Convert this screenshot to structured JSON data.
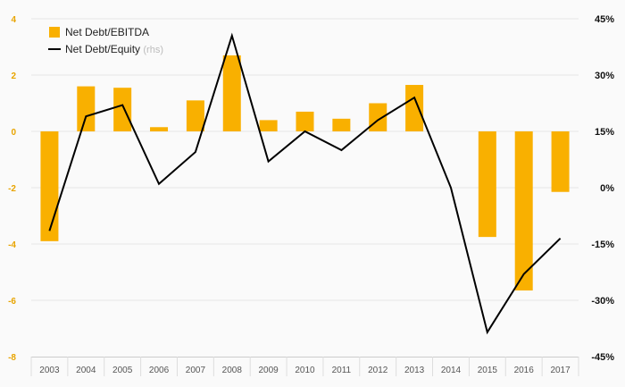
{
  "colors": {
    "bar": "#f9b000",
    "line": "#000000",
    "left_tick": "#e8a400",
    "grid": "#e6e6e6",
    "axis": "#cccccc"
  },
  "legend": {
    "bar_label": "Net Debt/EBITDA",
    "line_label": "Net Debt/Equity",
    "line_suffix": "(rhs)"
  },
  "chart_data": {
    "type": "bar",
    "categories": [
      "2003",
      "2004",
      "2005",
      "2006",
      "2007",
      "2008",
      "2009",
      "2010",
      "2011",
      "2012",
      "2013",
      "2014",
      "2015",
      "2016",
      "2017"
    ],
    "series": [
      {
        "name": "Net Debt/EBITDA",
        "type": "bar",
        "axis": "left",
        "values": [
          -3.9,
          1.6,
          1.55,
          0.15,
          1.1,
          2.7,
          0.4,
          0.7,
          0.45,
          1.0,
          1.65,
          0,
          -3.75,
          -5.65,
          -2.15
        ]
      },
      {
        "name": "Net Debt/Equity",
        "type": "line",
        "axis": "right",
        "values": [
          -11.5,
          19,
          22,
          1,
          9.5,
          40.5,
          7,
          15,
          10,
          18,
          24,
          0,
          -38.5,
          -23,
          -13.5
        ]
      }
    ],
    "ylim": [
      -8,
      4
    ],
    "yticks": [
      4,
      2,
      0,
      -2,
      -4,
      -6,
      -8
    ],
    "ytick_labels": [
      "4",
      "2",
      "0",
      "-2",
      "-4",
      "-6",
      "-8"
    ],
    "y2lim": [
      -45,
      45
    ],
    "y2ticks": [
      45,
      30,
      15,
      0,
      -15,
      -30,
      -45
    ],
    "y2tick_labels": [
      "45%",
      "30%",
      "15%",
      "0%",
      "-15%",
      "-30%",
      "-45%"
    ],
    "grid": true,
    "legend_position": "top-left"
  }
}
